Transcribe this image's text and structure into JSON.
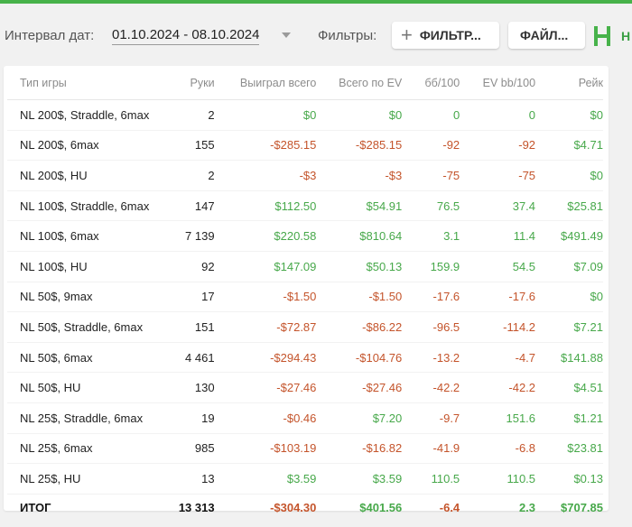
{
  "toolbar": {
    "date_label": "Интервал дат:",
    "date_range": "01.10.2024 - 08.10.2024",
    "filters_label": "Фильтры:",
    "filter_button": "ФИЛЬТР...",
    "file_button": "ФАЙЛ...",
    "logo_text": "Н"
  },
  "table": {
    "columns": [
      "Тип игры",
      "Руки",
      "Выиграл всего",
      "Всего по EV",
      "бб/100",
      "EV bb/100",
      "Рейк"
    ],
    "rows": [
      [
        "NL 200$, Straddle, 6max",
        "2",
        "$0",
        "$0",
        "0",
        "0",
        "$0"
      ],
      [
        "NL 200$, 6max",
        "155",
        "-$285.15",
        "-$285.15",
        "-92",
        "-92",
        "$4.71"
      ],
      [
        "NL 200$, HU",
        "2",
        "-$3",
        "-$3",
        "-75",
        "-75",
        "$0"
      ],
      [
        "NL 100$, Straddle, 6max",
        "147",
        "$112.50",
        "$54.91",
        "76.5",
        "37.4",
        "$25.81"
      ],
      [
        "NL 100$, 6max",
        "7 139",
        "$220.58",
        "$810.64",
        "3.1",
        "11.4",
        "$491.49"
      ],
      [
        "NL 100$, HU",
        "92",
        "$147.09",
        "$50.13",
        "159.9",
        "54.5",
        "$7.09"
      ],
      [
        "NL 50$, 9max",
        "17",
        "-$1.50",
        "-$1.50",
        "-17.6",
        "-17.6",
        "$0"
      ],
      [
        "NL 50$, Straddle, 6max",
        "151",
        "-$72.87",
        "-$86.22",
        "-96.5",
        "-114.2",
        "$7.21"
      ],
      [
        "NL 50$, 6max",
        "4 461",
        "-$294.43",
        "-$104.76",
        "-13.2",
        "-4.7",
        "$141.88"
      ],
      [
        "NL 50$, HU",
        "130",
        "-$27.46",
        "-$27.46",
        "-42.2",
        "-42.2",
        "$4.51"
      ],
      [
        "NL 25$, Straddle, 6max",
        "19",
        "-$0.46",
        "$7.20",
        "-9.7",
        "151.6",
        "$1.21"
      ],
      [
        "NL 25$, 6max",
        "985",
        "-$103.19",
        "-$16.82",
        "-41.9",
        "-6.8",
        "$23.81"
      ],
      [
        "NL 25$, HU",
        "13",
        "$3.59",
        "$3.59",
        "110.5",
        "110.5",
        "$0.13"
      ]
    ],
    "total": [
      "ИТОГ",
      "13 313",
      "-$304.30",
      "$401.56",
      "-6.4",
      "2.3",
      "$707.85"
    ]
  },
  "colors": {
    "accent": "#47b24a",
    "positive": "#47a84a",
    "negative": "#c4542b"
  },
  "icons": {
    "add": "plus-icon",
    "date_dropdown": "chevron-down-icon",
    "logo": "logo-icon"
  }
}
